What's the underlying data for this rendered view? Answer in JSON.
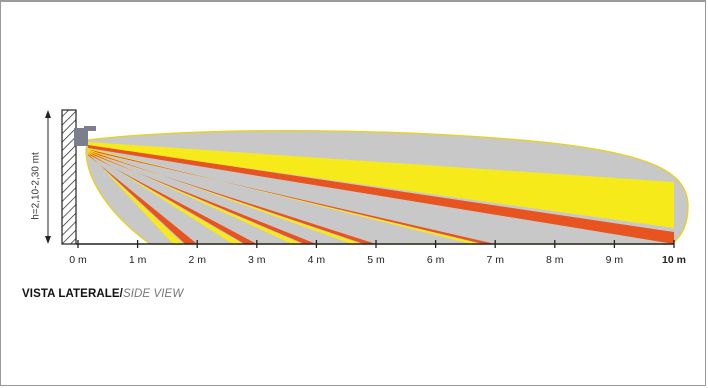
{
  "height_label": "h=2,10-2,30 mt",
  "distance_ticks": [
    "0 m",
    "1 m",
    "2 m",
    "3 m",
    "4 m",
    "5 m",
    "6 m",
    "7 m",
    "8 m",
    "9 m",
    "10 m"
  ],
  "caption": {
    "main": "VISTA LATERALE",
    "separator": "/",
    "secondary": "SIDE VIEW"
  },
  "colors": {
    "coverage_area": "#c8c8c8",
    "coverage_outline": "#e9d21a",
    "beam_yellow": "#f7ea1a",
    "beam_orange": "#e8541f",
    "axis": "#222222",
    "sensor": "#7b7f8c"
  },
  "beams_max_range_m": [
    2,
    3,
    4,
    5,
    7,
    10
  ],
  "axis_range_m": [
    0,
    10
  ]
}
